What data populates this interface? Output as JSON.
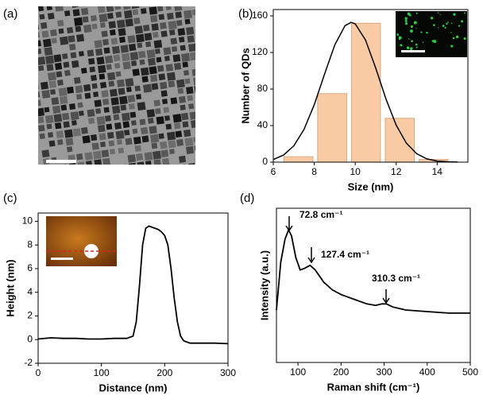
{
  "chart_data": [
    {
      "type": "image",
      "panel_label": "(a)"
    },
    {
      "type": "histogram",
      "panel_label": "(b)",
      "x_label": "Size (nm)",
      "y_label": "Number of QDs",
      "bins": [
        6.4,
        8.05,
        9.7,
        11.35,
        13.0,
        14.65
      ],
      "counts": [
        6,
        75,
        152,
        48,
        3
      ],
      "color": "#f8cba4",
      "fit": {
        "x": [
          6,
          6.5,
          7,
          7.5,
          8,
          8.5,
          9,
          9.5,
          9.8,
          10,
          10.5,
          11,
          11.5,
          12,
          12.5,
          13,
          13.5,
          14,
          14.5,
          15
        ],
        "values": [
          2.9,
          7.7,
          17.8,
          35.8,
          62.9,
          96.2,
          128.3,
          149.3,
          153,
          151.3,
          133.7,
          103.1,
          69.2,
          40.5,
          20.7,
          9.2,
          3.6,
          1.2,
          0.4,
          0.1
        ],
        "color": "#000000"
      },
      "xlim": [
        6,
        15.5
      ],
      "xticks": [
        6,
        8,
        10,
        12,
        14
      ],
      "ylim": [
        0,
        167
      ],
      "yticks": [
        0,
        40,
        80,
        120,
        160
      ]
    },
    {
      "type": "line",
      "panel_label": "(c)",
      "x_label": "Distance (nm)",
      "y_label": "Height (nm)",
      "x": [
        0,
        20,
        40,
        60,
        80,
        100,
        120,
        140,
        150,
        155,
        160,
        165,
        170,
        175,
        180,
        185,
        190,
        195,
        200,
        205,
        210,
        215,
        220,
        225,
        230,
        240,
        260,
        280,
        300
      ],
      "values": [
        0.05,
        0.15,
        0.1,
        0.1,
        0.05,
        0.05,
        0.1,
        0.1,
        0.3,
        1.5,
        4.5,
        8.0,
        9.4,
        9.6,
        9.5,
        9.4,
        9.3,
        9.1,
        8.8,
        8.0,
        6.0,
        3.5,
        1.5,
        0.3,
        -0.1,
        -0.3,
        -0.3,
        -0.3,
        -0.35
      ],
      "color": "#000000",
      "xlim": [
        0,
        300
      ],
      "xticks": [
        0,
        100,
        200,
        300
      ],
      "ylim": [
        -2,
        10.7
      ],
      "yticks": [
        -2,
        0,
        2,
        4,
        6,
        8,
        10
      ]
    },
    {
      "type": "line",
      "panel_label": "(d)",
      "x_label": "Raman shift (cm⁻¹)",
      "y_label": "Intensity (a.u.)",
      "x": [
        50,
        60,
        70,
        78,
        85,
        95,
        105,
        115,
        128,
        140,
        160,
        180,
        200,
        230,
        260,
        280,
        295,
        305,
        320,
        350,
        400,
        450,
        500
      ],
      "values": [
        0.34,
        0.65,
        0.8,
        0.86,
        0.82,
        0.68,
        0.6,
        0.61,
        0.63,
        0.6,
        0.52,
        0.47,
        0.44,
        0.41,
        0.38,
        0.37,
        0.38,
        0.38,
        0.36,
        0.34,
        0.33,
        0.32,
        0.32
      ],
      "color": "#000000",
      "xlim": [
        50,
        500
      ],
      "xticks": [
        100,
        200,
        300,
        400,
        500
      ],
      "ylim": [
        0,
        1
      ],
      "annotations": [
        "72.8 cm⁻¹",
        "127.4 cm⁻¹",
        "310.3 cm⁻¹"
      ]
    }
  ]
}
